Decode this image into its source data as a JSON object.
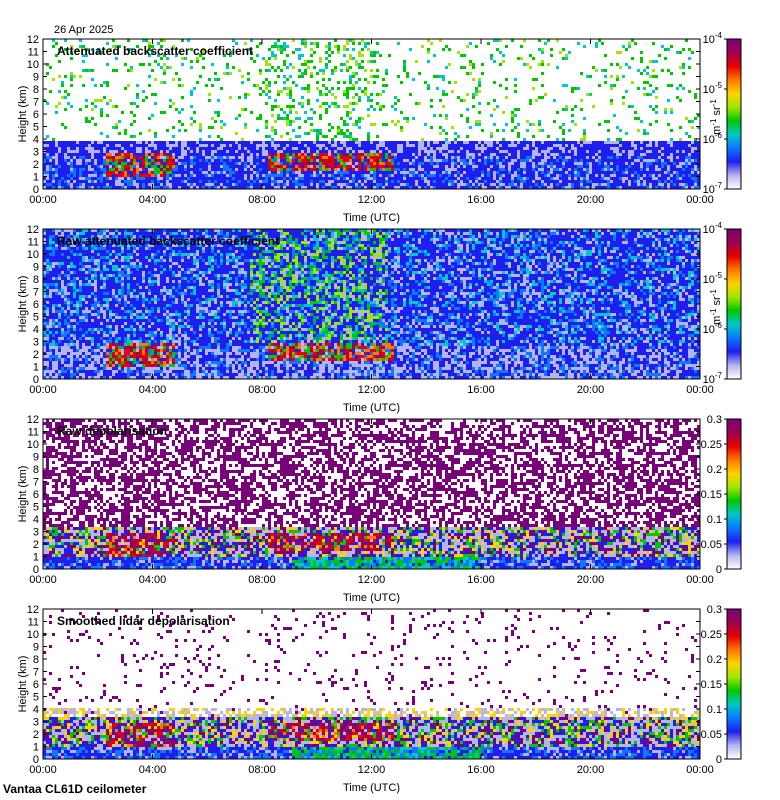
{
  "date_label": "26 Apr 2025",
  "footer": "Vantaa CL61D ceilometer",
  "colors": {
    "colormap": [
      "#ffffff",
      "#b4b4f0",
      "#1e1ef0",
      "#0a78ff",
      "#00c8c8",
      "#00c800",
      "#a0e600",
      "#ffd200",
      "#ff7800",
      "#e60000",
      "#a00050",
      "#780078"
    ]
  },
  "chart_data": [
    {
      "type": "heatmap",
      "title": "Attenuated backscatter coefficient",
      "xlabel": "Time (UTC)",
      "ylabel": "Height (km)",
      "x_ticks": [
        "00:00",
        "04:00",
        "08:00",
        "12:00",
        "16:00",
        "20:00",
        "00:00"
      ],
      "y_ticks": [
        "0",
        "1",
        "2",
        "3",
        "4",
        "5",
        "6",
        "7",
        "8",
        "9",
        "10",
        "11",
        "12"
      ],
      "xlim_hours": [
        0,
        24
      ],
      "ylim_km": [
        0,
        12
      ],
      "colorbar": {
        "scale": "log",
        "range": [
          1e-07,
          0.0001
        ],
        "tick_labels": [
          {
            "base": "10",
            "exp": "-7"
          },
          {
            "base": "10",
            "exp": "-6"
          },
          {
            "base": "10",
            "exp": "-5"
          },
          {
            "base": "10",
            "exp": "-4"
          }
        ],
        "unit": {
          "m": "m",
          "m_exp": "-1",
          "sr": "sr",
          "sr_exp": "-1"
        }
      }
    },
    {
      "type": "heatmap",
      "title": "Raw attenuated backscatter coefficient",
      "xlabel": "Time (UTC)",
      "ylabel": "Height (km)",
      "x_ticks": [
        "00:00",
        "04:00",
        "08:00",
        "12:00",
        "16:00",
        "20:00",
        "00:00"
      ],
      "y_ticks": [
        "0",
        "1",
        "2",
        "3",
        "4",
        "5",
        "6",
        "7",
        "8",
        "9",
        "10",
        "11",
        "12"
      ],
      "xlim_hours": [
        0,
        24
      ],
      "ylim_km": [
        0,
        12
      ],
      "colorbar": {
        "scale": "log",
        "range": [
          1e-07,
          0.0001
        ],
        "tick_labels": [
          {
            "base": "10",
            "exp": "-7"
          },
          {
            "base": "10",
            "exp": "-6"
          },
          {
            "base": "10",
            "exp": "-5"
          },
          {
            "base": "10",
            "exp": "-4"
          }
        ],
        "unit": {
          "m": "m",
          "m_exp": "-1",
          "sr": "sr",
          "sr_exp": "-1"
        }
      }
    },
    {
      "type": "heatmap",
      "title": "Raw depolarisation",
      "xlabel": "Time (UTC)",
      "ylabel": "Height (km)",
      "x_ticks": [
        "00:00",
        "04:00",
        "08:00",
        "12:00",
        "16:00",
        "20:00",
        "00:00"
      ],
      "y_ticks": [
        "0",
        "1",
        "2",
        "3",
        "4",
        "5",
        "6",
        "7",
        "8",
        "9",
        "10",
        "11",
        "12"
      ],
      "xlim_hours": [
        0,
        24
      ],
      "ylim_km": [
        0,
        12
      ],
      "colorbar": {
        "scale": "linear",
        "range": [
          0,
          0.3
        ],
        "tick_labels": [
          "0",
          "0.05",
          "0.1",
          "0.15",
          "0.2",
          "0.25",
          "0.3"
        ]
      }
    },
    {
      "type": "heatmap",
      "title": "Smoothed lidar depolarisation",
      "xlabel": "Time (UTC)",
      "ylabel": "Height (km)",
      "x_ticks": [
        "00:00",
        "04:00",
        "08:00",
        "12:00",
        "16:00",
        "20:00",
        "00:00"
      ],
      "y_ticks": [
        "0",
        "1",
        "2",
        "3",
        "4",
        "5",
        "6",
        "7",
        "8",
        "9",
        "10",
        "11",
        "12"
      ],
      "xlim_hours": [
        0,
        24
      ],
      "ylim_km": [
        0,
        12
      ],
      "colorbar": {
        "scale": "linear",
        "range": [
          0,
          0.3
        ],
        "tick_labels": [
          "0",
          "0.05",
          "0.1",
          "0.15",
          "0.2",
          "0.25",
          "0.3"
        ]
      }
    }
  ]
}
